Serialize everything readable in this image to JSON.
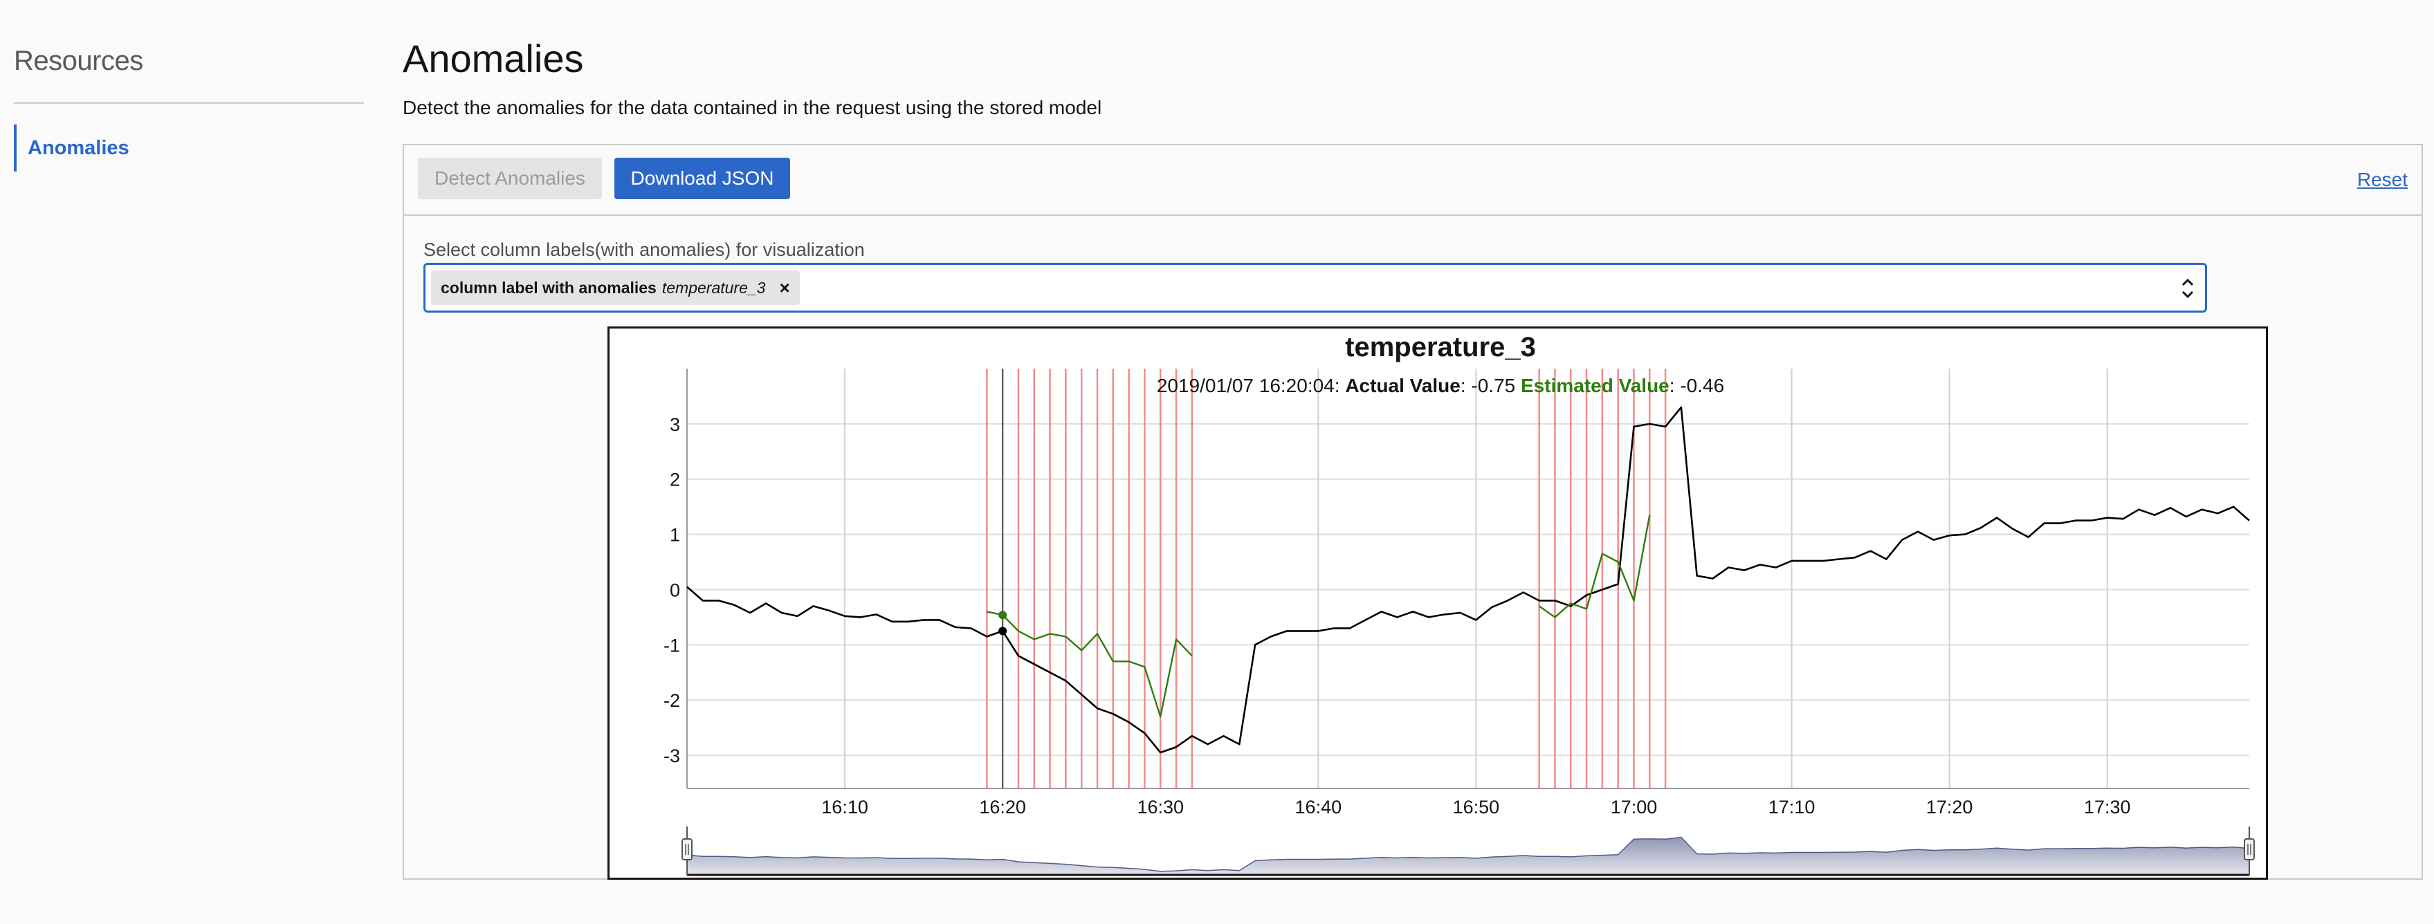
{
  "sidebar": {
    "title": "Resources",
    "items": [
      {
        "label": "Anomalies"
      }
    ]
  },
  "main": {
    "title": "Anomalies",
    "description": "Detect the anomalies for the data contained in the request using the stored model"
  },
  "toolbar": {
    "detect_label": "Detect Anomalies",
    "download_label": "Download JSON",
    "reset_label": "Reset"
  },
  "select": {
    "label": "Select column labels(with anomalies) for visualization",
    "chip_prefix": "column label with anomalies",
    "chip_value": "temperature_3",
    "chip_close": "×"
  },
  "colors": {
    "accent": "#2b67c9",
    "actual_line": "#000000",
    "estimated_line": "#2e7d10",
    "anomaly_marker": "#f28b8b"
  },
  "chart_data": {
    "type": "line",
    "title": "temperature_3",
    "tooltip": {
      "timestamp": "2019/01/07 16:20:04:",
      "actual_label": "Actual Value",
      "actual_value": ": -0.75",
      "estimated_label": "Estimated Value",
      "estimated_value": ": -0.46"
    },
    "xlim": [
      "16:00",
      "17:39"
    ],
    "ylim": [
      -3.6,
      4.0
    ],
    "yticks": [
      3,
      2,
      1,
      0,
      -1,
      -2,
      -3
    ],
    "xticks": [
      "16:10",
      "16:20",
      "16:30",
      "16:40",
      "16:50",
      "17:00",
      "17:10",
      "17:20",
      "17:30"
    ],
    "grid": true,
    "series": [
      {
        "kind": "actual",
        "x": [
          0,
          1,
          2,
          3,
          4,
          5,
          6,
          7,
          8,
          9,
          10,
          11,
          12,
          13,
          14,
          15,
          16,
          17,
          18,
          19,
          20,
          21,
          22,
          23,
          24,
          25,
          26,
          27,
          28,
          29,
          30,
          31,
          32,
          33,
          34,
          35,
          36,
          37,
          38,
          39,
          40,
          41,
          42,
          43,
          44,
          45,
          46,
          47,
          48,
          49,
          50,
          51,
          52,
          53,
          54,
          55,
          56,
          57,
          58,
          59,
          60,
          61,
          62,
          63,
          64,
          65,
          66,
          67,
          68,
          69,
          70,
          71,
          72,
          73,
          74,
          75,
          76,
          77,
          78,
          79,
          80,
          81,
          82,
          83,
          84,
          85,
          86,
          87,
          88,
          89,
          90,
          91,
          92,
          93,
          94,
          95,
          96,
          97,
          98,
          99
        ],
        "y": [
          0.05,
          -0.2,
          -0.2,
          -0.28,
          -0.42,
          -0.25,
          -0.42,
          -0.48,
          -0.3,
          -0.38,
          -0.48,
          -0.5,
          -0.45,
          -0.58,
          -0.58,
          -0.55,
          -0.55,
          -0.68,
          -0.7,
          -0.85,
          -0.75,
          -1.2,
          -1.35,
          -1.5,
          -1.65,
          -1.9,
          -2.15,
          -2.25,
          -2.4,
          -2.6,
          -2.95,
          -2.85,
          -2.65,
          -2.8,
          -2.65,
          -2.8,
          -1.0,
          -0.85,
          -0.75,
          -0.75,
          -0.75,
          -0.7,
          -0.7,
          -0.55,
          -0.4,
          -0.5,
          -0.4,
          -0.5,
          -0.45,
          -0.42,
          -0.55,
          -0.32,
          -0.2,
          -0.05,
          -0.2,
          -0.2,
          -0.3,
          -0.1,
          0.0,
          0.1,
          2.95,
          3.0,
          2.95,
          3.3,
          0.25,
          0.2,
          0.4,
          0.35,
          0.45,
          0.4,
          0.52,
          0.52,
          0.52,
          0.55,
          0.58,
          0.7,
          0.55,
          0.9,
          1.05,
          0.9,
          0.98,
          1.0,
          1.12,
          1.3,
          1.1,
          0.95,
          1.2,
          1.2,
          1.25,
          1.25,
          1.3,
          1.28,
          1.45,
          1.35,
          1.48,
          1.32,
          1.45,
          1.38,
          1.5,
          1.25
        ]
      },
      {
        "kind": "estimated",
        "x": [
          19,
          20,
          21,
          22,
          23,
          24,
          25,
          26,
          27,
          28,
          29,
          30,
          31,
          32
        ],
        "y": [
          -0.4,
          -0.46,
          -0.75,
          -0.9,
          -0.8,
          -0.85,
          -1.1,
          -0.8,
          -1.3,
          -1.3,
          -1.4,
          -2.3,
          -0.9,
          -1.2
        ]
      },
      {
        "kind": "estimated",
        "x": [
          54,
          55,
          56,
          57,
          58,
          59,
          60,
          61
        ],
        "y": [
          -0.3,
          -0.5,
          -0.25,
          -0.35,
          0.65,
          0.5,
          -0.2,
          1.35
        ]
      }
    ],
    "anomaly_x": [
      19,
      20,
      21,
      22,
      23,
      24,
      25,
      26,
      27,
      28,
      29,
      30,
      31,
      32,
      54,
      55,
      56,
      57,
      58,
      59,
      60,
      61,
      62
    ],
    "selected_x": 20
  }
}
